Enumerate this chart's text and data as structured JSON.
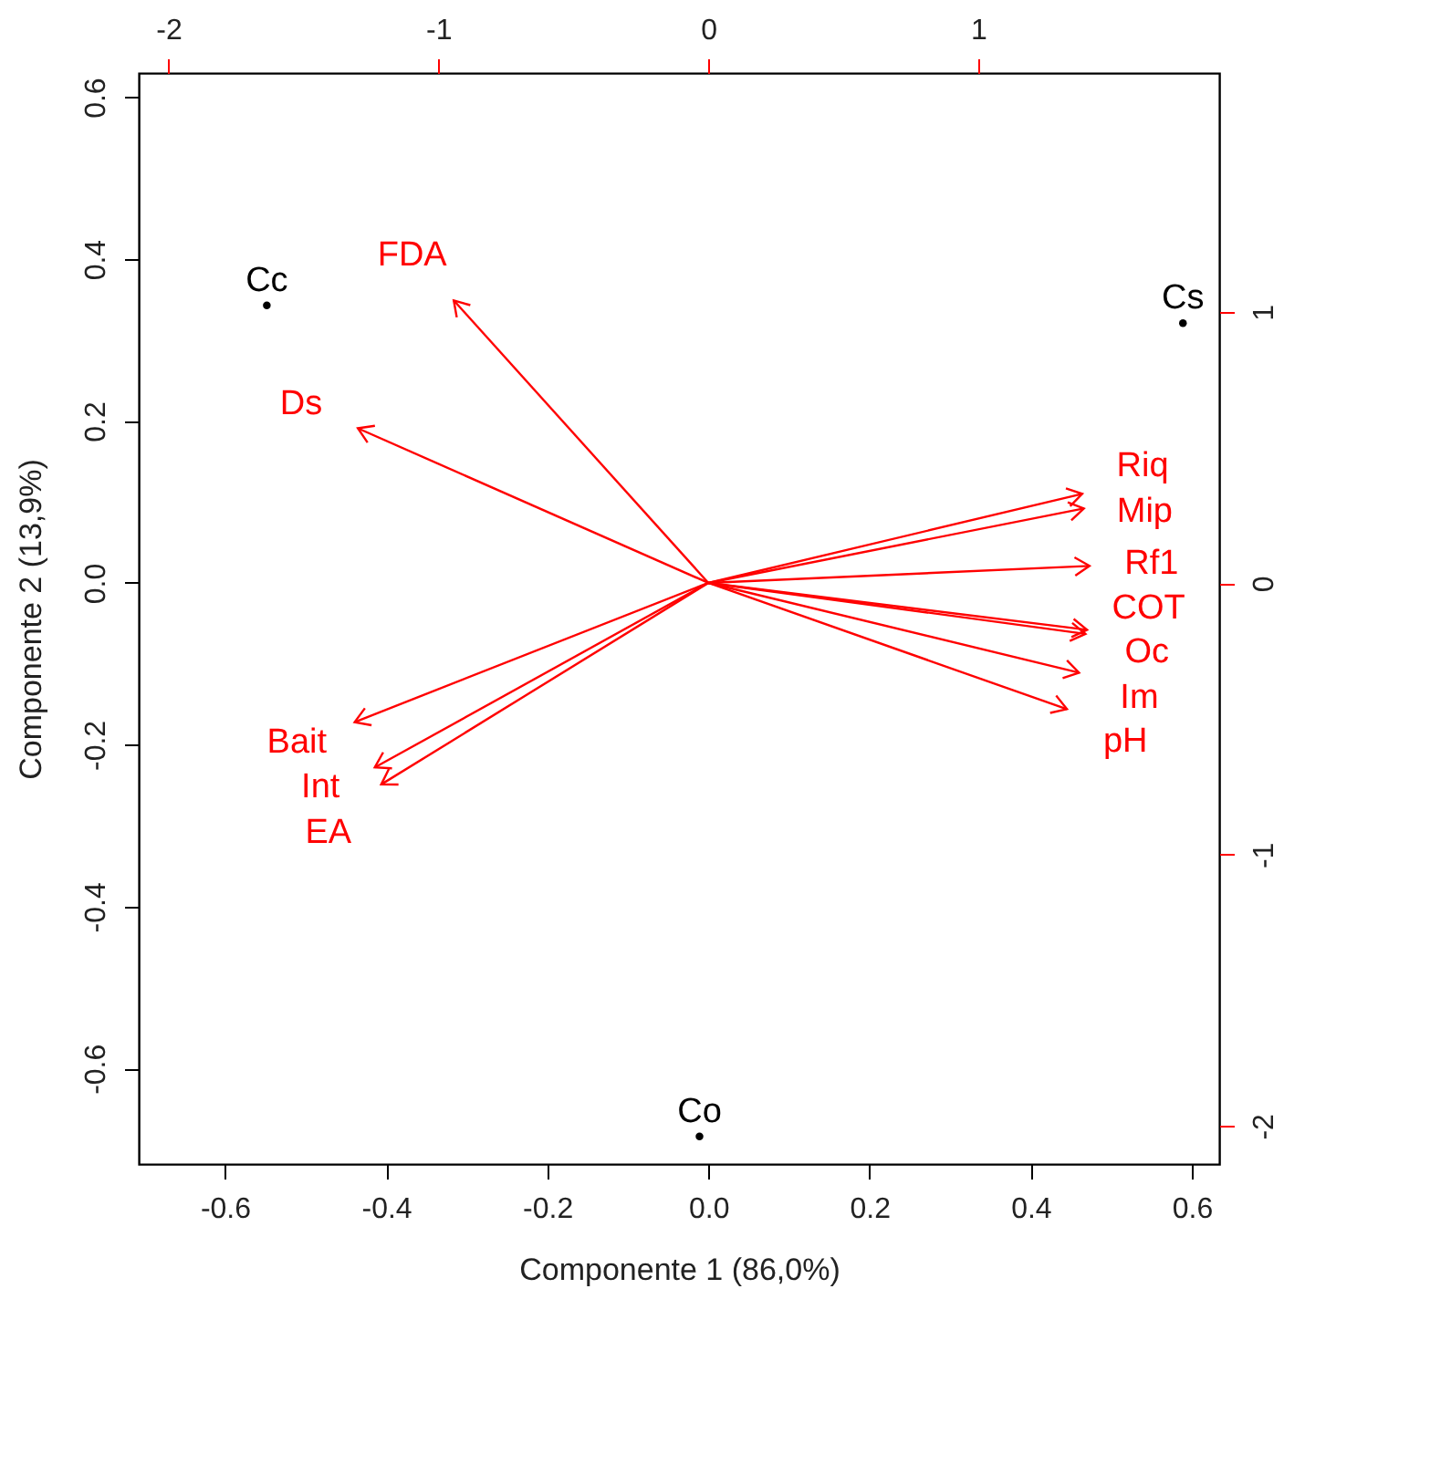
{
  "chart_data": {
    "type": "line",
    "xlabel": "Componente 1 (86,0%)",
    "ylabel": "Componente 2 (13,9%)",
    "xlim": [
      -0.707,
      0.634
    ],
    "ylim": [
      -0.718,
      0.63
    ],
    "xticks": [
      -0.6,
      -0.4,
      -0.2,
      {
        "value": 0,
        "label": "0.0"
      },
      0.2,
      0.4,
      0.6
    ],
    "yticks": [
      -0.6,
      -0.4,
      -0.2,
      {
        "value": 0,
        "label": "0.0"
      },
      0.2,
      0.4,
      0.6
    ],
    "x2lim": [
      -2.11,
      1.893
    ],
    "x2ticks": [
      -2,
      -1,
      0,
      1
    ],
    "y2lim": [
      -2.14,
      1.88
    ],
    "y2ticks": [
      -2,
      -1,
      0,
      1
    ],
    "grid": false,
    "legend": "right",
    "series": [
      {
        "name": "FDA",
        "color": "#ff0000",
        "x": [
          0,
          -0.316
        ],
        "values": [
          0,
          0.349
        ]
      },
      {
        "name": "Ds",
        "color": "#ff0000",
        "x": [
          0,
          -0.435
        ],
        "values": [
          0,
          0.191
        ]
      },
      {
        "name": "Riq",
        "color": "#ff0000",
        "x": [
          0,
          0.464
        ],
        "values": [
          0,
          0.11
        ]
      },
      {
        "name": "Mip",
        "color": "#ff0000",
        "x": [
          0,
          0.466
        ],
        "values": [
          0,
          0.092
        ]
      },
      {
        "name": "Rf1",
        "color": "#ff0000",
        "x": [
          0,
          0.473
        ],
        "values": [
          0,
          0.021
        ]
      },
      {
        "name": "COT",
        "color": "#ff0000",
        "x": [
          0,
          0.47
        ],
        "values": [
          0,
          -0.058
        ]
      },
      {
        "name": "Oc",
        "color": "#ff0000",
        "x": [
          0,
          0.468
        ],
        "values": [
          0,
          -0.063
        ]
      },
      {
        "name": "Im",
        "color": "#ff0000",
        "x": [
          0,
          0.46
        ],
        "values": [
          0,
          -0.111
        ]
      },
      {
        "name": "pH",
        "color": "#ff0000",
        "x": [
          0,
          0.445
        ],
        "values": [
          0,
          -0.156
        ]
      },
      {
        "name": "Bait",
        "color": "#ff0000",
        "x": [
          0,
          -0.439
        ],
        "values": [
          0,
          -0.172
        ]
      },
      {
        "name": "Int",
        "color": "#ff0000",
        "x": [
          0,
          -0.414
        ],
        "values": [
          0,
          -0.228
        ]
      },
      {
        "name": "EA",
        "color": "#ff0000",
        "x": [
          0,
          -0.406
        ],
        "values": [
          0,
          -0.249
        ]
      },
      {
        "type": "scatter",
        "marker": "circle",
        "color": "#000000",
        "x": [
          -0.548,
          0.589,
          -0.011
        ],
        "values": [
          0.343,
          0.321,
          -0.684
        ],
        "value_labels": [
          "Cc",
          "Cs",
          "Co"
        ]
      }
    ]
  }
}
